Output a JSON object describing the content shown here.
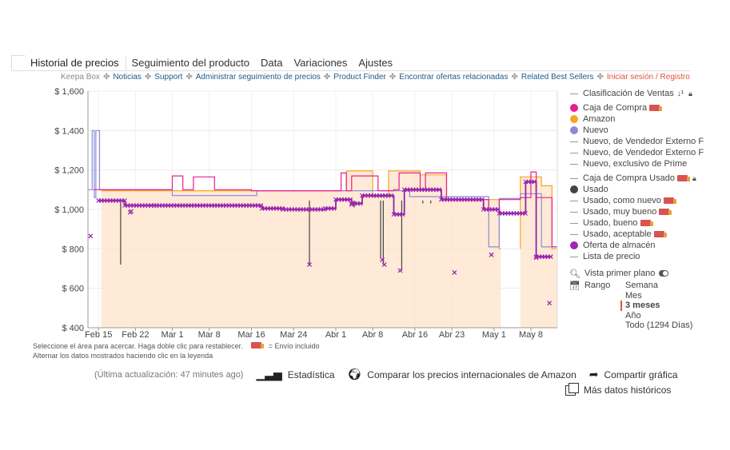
{
  "tabs": [
    "Historial de precios",
    "Seguimiento del producto",
    "Data",
    "Variaciones",
    "Ajustes"
  ],
  "links": {
    "brand": "Keepa Box",
    "items": [
      "Noticias",
      "Support",
      "Administrar seguimiento de precios",
      "Product Finder",
      "Encontrar ofertas relacionadas",
      "Related Best Sellers"
    ],
    "login": "Iniciar sesión / Registro",
    "separator": "✤"
  },
  "chart_data": {
    "type": "line",
    "currency": "$",
    "ylim": [
      400,
      1600
    ],
    "yticks": [
      "$ 400",
      "$ 600",
      "$ 800",
      "$ 1,000",
      "$ 1,200",
      "$ 1,400",
      "$ 1,600"
    ],
    "ytick_values": [
      400,
      600,
      800,
      1000,
      1200,
      1400,
      1600
    ],
    "xticks": [
      "Feb 15",
      "Feb 22",
      "Mar 1",
      "Mar 8",
      "Mar 16",
      "Mar 24",
      "Abr 1",
      "Abr 8",
      "Abr 16",
      "Abr 23",
      "May 1",
      "May 8"
    ],
    "xtick_days": [
      0,
      7,
      14,
      21,
      29,
      37,
      45,
      52,
      60,
      67,
      75,
      82
    ],
    "xlim_days": [
      -2,
      87
    ],
    "series": [
      {
        "name": "Amazon (área)",
        "color": "#f5a623",
        "points": [
          [
            0.5,
            1095
          ],
          [
            29,
            1095
          ],
          [
            29,
            1095
          ],
          [
            47,
            1095
          ],
          [
            47,
            1195
          ],
          [
            52,
            1195
          ],
          [
            52,
            1065
          ],
          [
            55,
            1065
          ],
          [
            55,
            1195
          ],
          [
            61,
            1195
          ],
          [
            61,
            1175
          ],
          [
            66,
            1175
          ],
          [
            66,
            1050
          ],
          [
            76,
            1050
          ],
          [
            76,
            800
          ],
          [
            76.3,
            800
          ]
        ]
      },
      {
        "name": "Amazon (área 2)",
        "color": "#f5a623",
        "points": [
          [
            80,
            800
          ],
          [
            80,
            1165
          ],
          [
            84,
            1165
          ],
          [
            84,
            1120
          ],
          [
            86,
            1120
          ],
          [
            86,
            800
          ],
          [
            87,
            800
          ]
        ]
      },
      {
        "name": "Nuevo",
        "color": "#8b8bd8",
        "points": [
          [
            -2,
            1100
          ],
          [
            -1.2,
            1100
          ],
          [
            -1.2,
            1400
          ],
          [
            -0.8,
            1400
          ],
          [
            -0.8,
            1060
          ],
          [
            -0.5,
            1060
          ],
          [
            -0.5,
            1400
          ],
          [
            0.2,
            1400
          ],
          [
            0.2,
            1100
          ],
          [
            14,
            1100
          ],
          [
            14,
            1070
          ],
          [
            30,
            1070
          ],
          [
            30,
            1095
          ],
          [
            59,
            1095
          ],
          [
            59,
            1065
          ],
          [
            74,
            1065
          ],
          [
            74,
            810
          ],
          [
            76,
            810
          ],
          [
            76,
            1055
          ],
          [
            80,
            1055
          ],
          [
            80,
            1080
          ],
          [
            84,
            1080
          ],
          [
            84,
            810
          ],
          [
            87,
            810
          ]
        ]
      },
      {
        "name": "Caja de Compra",
        "color": "#e91e8c",
        "points": [
          [
            -1,
            1100
          ],
          [
            14,
            1100
          ],
          [
            14,
            1170
          ],
          [
            16,
            1170
          ],
          [
            16,
            1100
          ],
          [
            18,
            1100
          ],
          [
            18,
            1165
          ],
          [
            22,
            1165
          ],
          [
            22,
            1100
          ],
          [
            29,
            1100
          ],
          [
            29,
            1095
          ],
          [
            46,
            1095
          ],
          [
            46,
            1185
          ],
          [
            47,
            1185
          ],
          [
            47,
            1095
          ],
          [
            48,
            1095
          ],
          [
            48,
            1170
          ],
          [
            53,
            1170
          ],
          [
            53,
            1095
          ],
          [
            56,
            1095
          ],
          [
            56,
            1100
          ],
          [
            57,
            1100
          ],
          [
            57,
            1185
          ],
          [
            61,
            1185
          ],
          [
            61,
            1100
          ],
          [
            62,
            1100
          ],
          [
            62,
            1185
          ],
          [
            66,
            1185
          ],
          [
            66,
            1050
          ],
          [
            74,
            1050
          ],
          [
            74,
            1000
          ],
          [
            76,
            1000
          ],
          [
            76,
            1050
          ],
          [
            80,
            1050
          ],
          [
            80,
            1060
          ],
          [
            82,
            1060
          ],
          [
            82,
            1190
          ],
          [
            83,
            1190
          ],
          [
            83,
            1060
          ],
          [
            86,
            1060
          ],
          [
            86,
            810
          ],
          [
            87,
            810
          ]
        ]
      },
      {
        "name": "Oferta de almacén",
        "color": "#8e24aa",
        "points": [
          [
            0,
            1045
          ],
          [
            5,
            1045
          ],
          [
            5,
            1020
          ],
          [
            10,
            1020
          ],
          [
            11,
            1020
          ],
          [
            11,
            1020
          ],
          [
            22,
            1020
          ],
          [
            22,
            1020
          ],
          [
            31,
            1020
          ],
          [
            31,
            1005
          ],
          [
            35,
            1005
          ],
          [
            35,
            1000
          ],
          [
            43,
            1000
          ],
          [
            43,
            1005
          ],
          [
            45,
            1005
          ],
          [
            45,
            1050
          ],
          [
            48,
            1050
          ],
          [
            48,
            1030
          ],
          [
            50,
            1030
          ],
          [
            50,
            1070
          ],
          [
            56,
            1070
          ],
          [
            56,
            975
          ],
          [
            58,
            975
          ],
          [
            58,
            1100
          ],
          [
            65,
            1100
          ],
          [
            65,
            1050
          ],
          [
            73,
            1050
          ],
          [
            73,
            1000
          ],
          [
            76,
            1000
          ],
          [
            76,
            980
          ],
          [
            81,
            980
          ],
          [
            81,
            1140
          ],
          [
            83,
            1140
          ],
          [
            83,
            760
          ],
          [
            86,
            760
          ]
        ]
      }
    ],
    "spikes_days": [
      4.2,
      40,
      48.5,
      53.5,
      54,
      57.5,
      61.5,
      63
    ],
    "spike_lows": [
      720,
      720,
      1010,
      750,
      720,
      690,
      1030,
      1030
    ],
    "markers_x_days": [
      -1.5,
      6,
      6.2,
      40,
      48,
      53.8,
      54.2,
      57.2,
      67.5,
      74.5,
      85.5,
      83
    ],
    "markers_y": [
      865,
      985,
      990,
      720,
      1025,
      745,
      720,
      690,
      680,
      770,
      525,
      755
    ],
    "title": "Historial de precios",
    "xlabel": "",
    "ylabel": ""
  },
  "hints": {
    "line1": "Seleccione el área para acercar. Haga doble clic para restablecer.",
    "shipping": "= Envío incluido",
    "line2": "Alternar los datos mostrados haciendo clic en la leyenda"
  },
  "legend": {
    "items": [
      {
        "label": "Clasificación de Ventas",
        "kind": "line",
        "color": "#999999"
      },
      {
        "label": "Caja de Compra",
        "kind": "dot",
        "color": "#e91e8c"
      },
      {
        "label": "Amazon",
        "kind": "dot",
        "color": "#f5a623"
      },
      {
        "label": "Nuevo",
        "kind": "dot",
        "color": "#8b8bd8"
      },
      {
        "label": "Nuevo, de Vendedor Externo FBA",
        "kind": "line",
        "color": "#999999"
      },
      {
        "label": "Nuevo, de Vendedor Externo FBM",
        "kind": "line",
        "color": "#999999"
      },
      {
        "label": "Nuevo, exclusivo de Prime",
        "kind": "line",
        "color": "#999999"
      },
      {
        "label": "Caja de Compra Usado",
        "kind": "line",
        "color": "#999999"
      },
      {
        "label": "Usado",
        "kind": "dot",
        "color": "#444444"
      },
      {
        "label": "Usado, como nuevo",
        "kind": "line",
        "color": "#999999"
      },
      {
        "label": "Usado, muy bueno",
        "kind": "line",
        "color": "#999999"
      },
      {
        "label": "Usado, bueno",
        "kind": "line",
        "color": "#999999"
      },
      {
        "label": "Usado, aceptable",
        "kind": "line",
        "color": "#999999"
      },
      {
        "label": "Oferta de almacén",
        "kind": "dot",
        "color": "#9c27b0"
      },
      {
        "label": "Lista de precio",
        "kind": "line",
        "color": "#999999"
      }
    ],
    "zoom_label": "Vista primer plano",
    "range_label": "Rango",
    "range_options": [
      "Semana",
      "Mes",
      "3 meses",
      "Año",
      "Todo (1294 Días)"
    ],
    "range_selected": "3 meses"
  },
  "footer": {
    "updated": "(Última actualización: 47 minutes ago)",
    "stats": "Estadística",
    "compare": "Comparar los precios internacionales de Amazon",
    "share": "Compartir gráfica",
    "more": "Más datos históricos"
  }
}
